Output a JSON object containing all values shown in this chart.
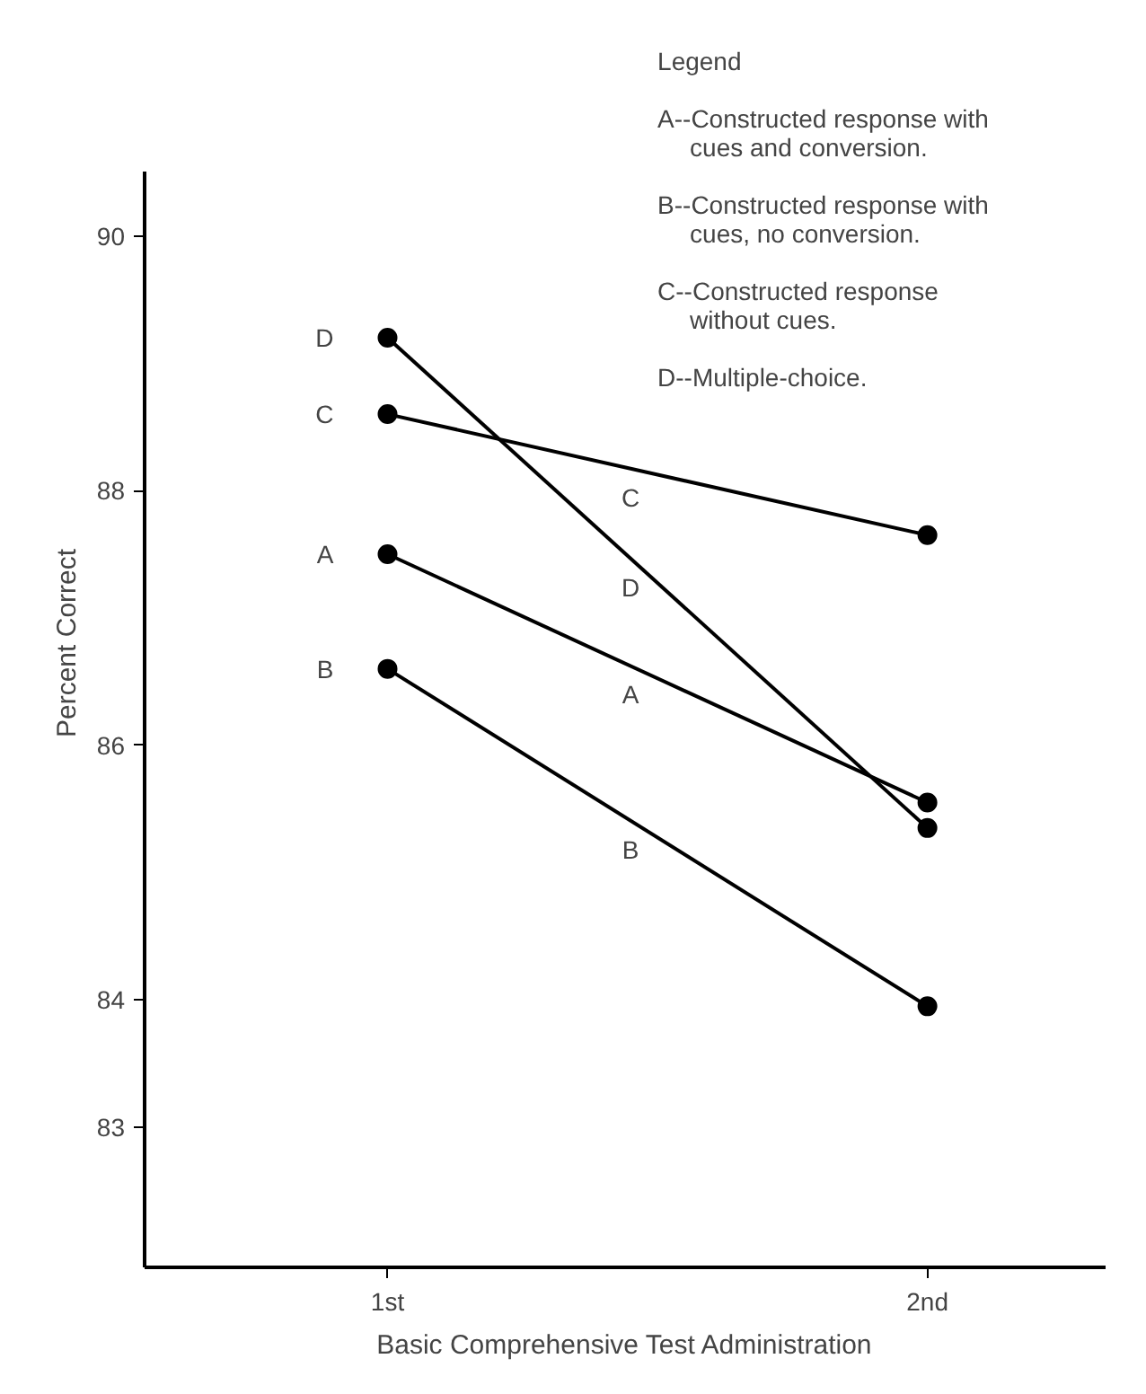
{
  "chart_data": {
    "type": "line",
    "categories": [
      "1st",
      "2nd"
    ],
    "series": [
      {
        "name": "A",
        "color": "#000000",
        "values": [
          87.5,
          85.55
        ]
      },
      {
        "name": "B",
        "color": "#000000",
        "values": [
          86.6,
          83.95
        ]
      },
      {
        "name": "C",
        "color": "#000000",
        "values": [
          88.6,
          87.65
        ]
      },
      {
        "name": "D",
        "color": "#000000",
        "values": [
          89.2,
          85.35
        ]
      }
    ],
    "ylim": [
      81.9,
      90.5
    ],
    "yticks": [
      83,
      84,
      86,
      88,
      90
    ],
    "xlabel": "Basic Comprehensive Test Administration",
    "ylabel": "Percent Correct",
    "legend_title": "Legend",
    "annotations": [
      "A--Constructed response with cues and conversion.",
      "B--Constructed response with cues, no conversion.",
      "C--Constructed response without cues.",
      "D--Multiple-choice."
    ],
    "marker": "circle",
    "line_style": "solid",
    "grid": false
  }
}
